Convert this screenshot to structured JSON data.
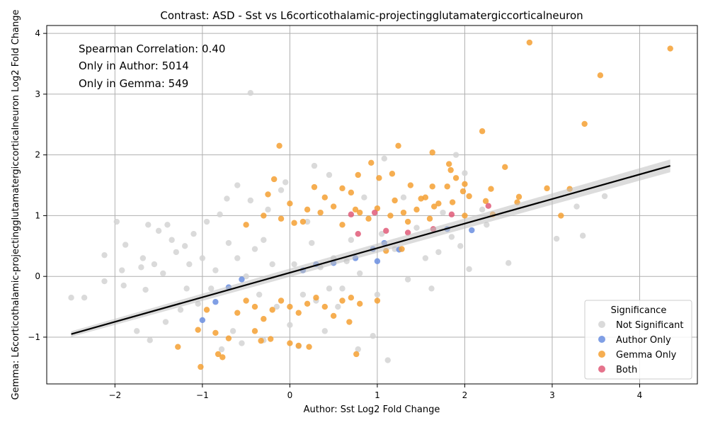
{
  "chart_data": {
    "type": "scatter",
    "title": "Contrast: ASD - Sst vs L6corticothalamic-projectingglutamatergiccorticalneuron",
    "xlabel": "Author: Sst Log2 Fold Change",
    "ylabel": "Gemma: L6corticothalamic-projectingglutamatergiccorticalneuron Log2 Fold Change",
    "xlim": [
      -2.78,
      4.66
    ],
    "ylim": [
      -1.77,
      4.13
    ],
    "xticks": [
      -2,
      -1,
      0,
      1,
      2,
      3,
      4
    ],
    "yticks": [
      -1,
      0,
      1,
      2,
      3,
      4
    ],
    "tick_labels_x": [
      "−2",
      "−1",
      "0",
      "1",
      "2",
      "3",
      "4"
    ],
    "tick_labels_y": [
      "−1",
      "0",
      "1",
      "2",
      "3",
      "4"
    ],
    "grid": true,
    "annotations": [
      "Spearman Correlation: 0.40",
      "Only in Author: 5014",
      "Only in Gemma: 549"
    ],
    "legend": {
      "title": "Significance",
      "placement": "lower-right",
      "entries": [
        {
          "label": "Not Significant",
          "color": "#d3d3d3"
        },
        {
          "label": "Author Only",
          "color": "#6a8ee0"
        },
        {
          "label": "Gemma Only",
          "color": "#f5a033"
        },
        {
          "label": "Both",
          "color": "#e05a78"
        }
      ]
    },
    "regression_line": {
      "x": [
        -2.5,
        4.35
      ],
      "y": [
        -0.95,
        1.82
      ],
      "color": "#000000"
    },
    "series": [
      {
        "name": "Not Significant",
        "color": "#d3d3d3",
        "points": [
          [
            -2.5,
            -0.35
          ],
          [
            -2.35,
            -0.35
          ],
          [
            -2.12,
            0.35
          ],
          [
            -2.12,
            -0.08
          ],
          [
            -1.98,
            0.9
          ],
          [
            -1.92,
            0.1
          ],
          [
            -1.9,
            -0.15
          ],
          [
            -1.88,
            0.52
          ],
          [
            -1.75,
            -0.9
          ],
          [
            -1.7,
            0.15
          ],
          [
            -1.68,
            0.3
          ],
          [
            -1.65,
            -0.22
          ],
          [
            -1.62,
            0.85
          ],
          [
            -1.6,
            -1.05
          ],
          [
            -1.55,
            0.2
          ],
          [
            -1.5,
            0.75
          ],
          [
            -1.45,
            0.05
          ],
          [
            -1.42,
            -0.75
          ],
          [
            -1.4,
            0.85
          ],
          [
            -1.35,
            0.6
          ],
          [
            -1.3,
            0.4
          ],
          [
            -1.25,
            -0.55
          ],
          [
            -1.2,
            0.5
          ],
          [
            -1.18,
            -0.2
          ],
          [
            -1.15,
            0.2
          ],
          [
            -1.1,
            0.7
          ],
          [
            -1.05,
            -0.45
          ],
          [
            -1.0,
            0.3
          ],
          [
            -0.95,
            0.9
          ],
          [
            -0.9,
            -0.2
          ],
          [
            -0.85,
            0.1
          ],
          [
            -0.8,
            1.02
          ],
          [
            -0.78,
            -1.2
          ],
          [
            -0.72,
            1.28
          ],
          [
            -0.7,
            0.55
          ],
          [
            -0.65,
            -0.9
          ],
          [
            -0.6,
            1.5
          ],
          [
            -0.55,
            -1.1
          ],
          [
            -0.45,
            3.02
          ],
          [
            -0.45,
            1.25
          ],
          [
            -0.4,
            0.45
          ],
          [
            -0.35,
            -0.3
          ],
          [
            -0.3,
            -1.05
          ],
          [
            -0.25,
            1.1
          ],
          [
            -0.1,
            1.42
          ],
          [
            -0.05,
            1.55
          ],
          [
            0.0,
            -0.8
          ],
          [
            0.05,
            0.2
          ],
          [
            0.1,
            -1.15
          ],
          [
            0.2,
            0.9
          ],
          [
            0.28,
            1.82
          ],
          [
            0.3,
            -0.4
          ],
          [
            0.4,
            -0.9
          ],
          [
            0.45,
            1.67
          ],
          [
            0.5,
            0.3
          ],
          [
            0.55,
            -0.5
          ],
          [
            0.6,
            -0.2
          ],
          [
            0.7,
            0.6
          ],
          [
            0.78,
            -1.2
          ],
          [
            0.85,
            1.3
          ],
          [
            0.95,
            -0.98
          ],
          [
            1.0,
            -0.3
          ],
          [
            1.08,
            1.94
          ],
          [
            1.12,
            -1.38
          ],
          [
            1.2,
            0.45
          ],
          [
            1.3,
            1.3
          ],
          [
            1.35,
            -0.05
          ],
          [
            1.45,
            0.8
          ],
          [
            1.55,
            0.3
          ],
          [
            1.62,
            -0.2
          ],
          [
            1.7,
            0.4
          ],
          [
            1.75,
            1.05
          ],
          [
            1.85,
            0.65
          ],
          [
            1.9,
            2.0
          ],
          [
            1.95,
            0.5
          ],
          [
            2.0,
            1.7
          ],
          [
            2.05,
            0.12
          ],
          [
            2.2,
            1.1
          ],
          [
            2.25,
            0.85
          ],
          [
            2.5,
            0.22
          ],
          [
            3.05,
            0.62
          ],
          [
            3.28,
            1.15
          ],
          [
            3.35,
            0.67
          ],
          [
            3.6,
            1.32
          ],
          [
            -0.2,
            0.2
          ],
          [
            0.15,
            -0.3
          ],
          [
            0.35,
            0.15
          ],
          [
            -0.5,
            0.0
          ],
          [
            0.65,
            0.25
          ],
          [
            -0.15,
            -0.5
          ],
          [
            0.25,
            0.55
          ],
          [
            0.8,
            0.05
          ],
          [
            -0.6,
            0.3
          ],
          [
            1.05,
            0.7
          ],
          [
            0.45,
            -0.2
          ],
          [
            -0.3,
            0.6
          ]
        ]
      },
      {
        "name": "Author Only",
        "color": "#6a8ee0",
        "points": [
          [
            -1.0,
            -0.72
          ],
          [
            -0.85,
            -0.42
          ],
          [
            -0.7,
            -0.18
          ],
          [
            -0.55,
            -0.05
          ],
          [
            0.15,
            0.1
          ],
          [
            0.3,
            0.2
          ],
          [
            0.5,
            0.22
          ],
          [
            0.75,
            0.3
          ],
          [
            0.95,
            0.45
          ],
          [
            1.0,
            0.25
          ],
          [
            1.08,
            0.55
          ],
          [
            1.25,
            0.44
          ],
          [
            1.8,
            0.78
          ],
          [
            2.08,
            0.76
          ]
        ]
      },
      {
        "name": "Gemma Only",
        "color": "#f5a033",
        "points": [
          [
            2.74,
            3.85
          ],
          [
            4.35,
            3.75
          ],
          [
            3.55,
            3.31
          ],
          [
            3.37,
            2.51
          ],
          [
            2.2,
            2.39
          ],
          [
            -0.12,
            2.15
          ],
          [
            1.24,
            2.15
          ],
          [
            1.63,
            2.04
          ],
          [
            0.93,
            1.87
          ],
          [
            1.82,
            1.85
          ],
          [
            2.46,
            1.8
          ],
          [
            1.84,
            1.75
          ],
          [
            1.17,
            1.69
          ],
          [
            0.78,
            1.67
          ],
          [
            1.9,
            1.62
          ],
          [
            -0.18,
            1.6
          ],
          [
            1.02,
            1.62
          ],
          [
            1.38,
            1.5
          ],
          [
            2.0,
            1.52
          ],
          [
            2.3,
            1.44
          ],
          [
            2.94,
            1.45
          ],
          [
            3.2,
            1.44
          ],
          [
            1.63,
            1.48
          ],
          [
            0.6,
            1.45
          ],
          [
            1.98,
            1.4
          ],
          [
            0.28,
            1.47
          ],
          [
            2.62,
            1.31
          ],
          [
            2.05,
            1.32
          ],
          [
            1.8,
            1.48
          ],
          [
            0.7,
            1.38
          ],
          [
            -0.25,
            1.35
          ],
          [
            2.24,
            1.24
          ],
          [
            2.6,
            1.22
          ],
          [
            1.86,
            1.22
          ],
          [
            2.32,
            1.02
          ],
          [
            3.1,
            1.0
          ],
          [
            0.4,
            1.3
          ],
          [
            1.5,
            1.28
          ],
          [
            2.0,
            1.0
          ],
          [
            1.7,
            1.2
          ],
          [
            -1.28,
            -1.16
          ],
          [
            -1.02,
            -1.49
          ],
          [
            -0.82,
            -1.28
          ],
          [
            -0.77,
            -1.33
          ],
          [
            0.0,
            -1.1
          ],
          [
            0.1,
            -1.14
          ],
          [
            0.22,
            -1.16
          ],
          [
            0.76,
            -1.28
          ],
          [
            -0.7,
            -1.02
          ],
          [
            -0.4,
            -0.9
          ],
          [
            -0.33,
            -1.06
          ],
          [
            -0.22,
            -1.03
          ],
          [
            0.68,
            -0.75
          ],
          [
            -1.05,
            -0.88
          ],
          [
            -0.95,
            -0.55
          ],
          [
            -0.85,
            -0.93
          ],
          [
            1.1,
            0.42
          ],
          [
            1.28,
            0.45
          ],
          [
            -0.5,
            0.85
          ],
          [
            -0.3,
            1.0
          ],
          [
            0.0,
            1.2
          ],
          [
            0.2,
            1.1
          ],
          [
            0.5,
            1.15
          ],
          [
            0.8,
            1.05
          ],
          [
            1.0,
            1.12
          ],
          [
            1.15,
            1.0
          ],
          [
            1.3,
            1.05
          ],
          [
            1.45,
            1.1
          ],
          [
            1.6,
            0.95
          ],
          [
            1.55,
            1.3
          ],
          [
            0.9,
            0.95
          ],
          [
            1.2,
            1.25
          ],
          [
            0.35,
            1.05
          ],
          [
            -0.1,
            0.95
          ],
          [
            0.15,
            0.9
          ],
          [
            0.6,
            0.85
          ],
          [
            0.75,
            1.1
          ],
          [
            1.35,
            0.9
          ],
          [
            1.65,
            1.15
          ],
          [
            0.05,
            0.88
          ],
          [
            -0.6,
            -0.6
          ],
          [
            -0.4,
            -0.5
          ],
          [
            -0.2,
            -0.55
          ],
          [
            0.0,
            -0.5
          ],
          [
            0.2,
            -0.45
          ],
          [
            0.4,
            -0.5
          ],
          [
            0.6,
            -0.4
          ],
          [
            0.8,
            -0.45
          ],
          [
            -0.5,
            -0.4
          ],
          [
            -0.1,
            -0.4
          ],
          [
            0.3,
            -0.35
          ],
          [
            0.7,
            -0.35
          ],
          [
            1.0,
            -0.4
          ],
          [
            -0.3,
            -0.7
          ],
          [
            0.1,
            -0.6
          ],
          [
            0.5,
            -0.65
          ]
        ]
      },
      {
        "name": "Both",
        "color": "#e05a78",
        "points": [
          [
            2.27,
            1.16
          ],
          [
            1.64,
            0.78
          ],
          [
            1.85,
            1.02
          ],
          [
            1.35,
            0.72
          ],
          [
            0.97,
            1.05
          ],
          [
            0.78,
            0.7
          ],
          [
            0.7,
            1.02
          ],
          [
            1.1,
            0.75
          ]
        ]
      }
    ]
  }
}
